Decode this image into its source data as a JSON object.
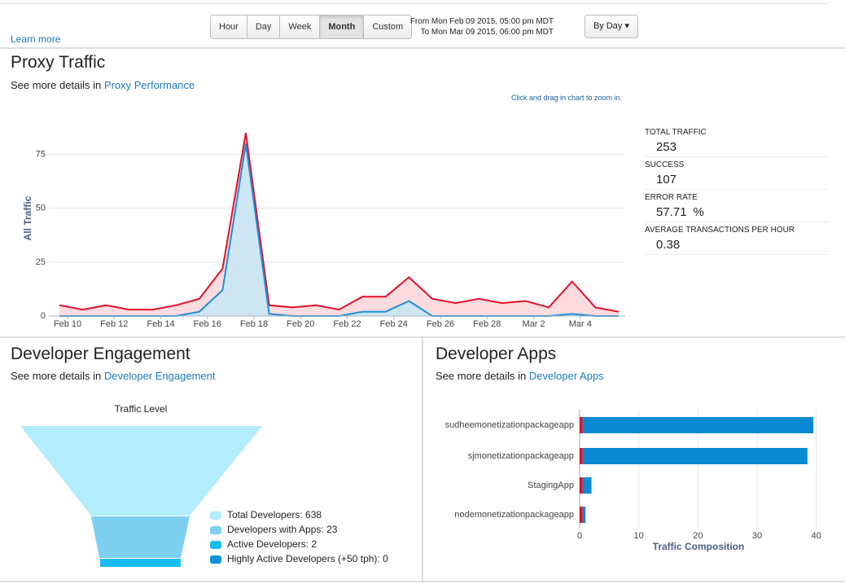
{
  "toolbar": {
    "learn_more": "Learn more",
    "range_buttons": [
      "Hour",
      "Day",
      "Week",
      "Month",
      "Custom"
    ],
    "active_button": 3,
    "from_text": "From Mon Feb 09 2015, 05:00 pm MDT",
    "to_text": "To Mon Mar 09 2015, 06:00 pm MDT",
    "interval": "By Day"
  },
  "proxy_traffic": {
    "title": "Proxy Traffic",
    "details_prefix": "See more details in",
    "details_link": "Proxy Performance",
    "hint": "Click and drag in chart to zoom in."
  },
  "stats": [
    {
      "label": "TOTAL TRAFFIC",
      "value": 253
    },
    {
      "label": "SUCCESS",
      "value": 107
    },
    {
      "label": "ERROR RATE",
      "value": 57.71,
      "unit": "%"
    },
    {
      "label": "AVERAGE TRANSACTIONS PER HOUR",
      "value": 0.38
    }
  ],
  "developer_engagement": {
    "title": "Developer Engagement",
    "details_prefix": "See more details in",
    "details_link": "Developer Engagement"
  },
  "developer_apps": {
    "title": "Developer Apps",
    "details_prefix": "See more details in",
    "details_link": "Developer Apps"
  },
  "chart_data": [
    {
      "type": "area",
      "y_label": "All Traffic",
      "categories": [
        null,
        "Feb 10",
        null,
        "Feb 12",
        null,
        "Feb 14",
        null,
        "Feb 16",
        null,
        "Feb 18",
        null,
        "Feb 20",
        null,
        "Feb 22",
        null,
        "Feb 24",
        null,
        "Feb 26",
        null,
        "Feb 28",
        null,
        "Mar 2",
        null,
        "Mar 4",
        null
      ],
      "series": [
        {
          "color": "#e3102a",
          "fill": "#fdd5d9",
          "values": [
            5,
            3,
            5,
            3,
            3,
            5,
            8,
            22,
            85,
            5,
            4,
            5,
            3,
            9,
            9,
            18,
            8,
            6,
            8,
            6,
            7,
            4,
            16,
            4,
            2
          ]
        },
        {
          "color": "#1c8fd6",
          "fill": "#c5e6f6",
          "values": [
            0,
            0,
            0,
            0,
            0,
            0,
            2,
            12,
            80,
            1,
            0,
            0,
            0,
            2,
            2,
            7,
            0,
            0,
            0,
            0,
            0,
            0,
            1,
            0,
            0
          ]
        }
      ],
      "ylim": [
        0,
        90
      ],
      "yticks": [
        0,
        25,
        50,
        75
      ],
      "grid": true
    },
    {
      "type": "funnel",
      "title": "Traffic Level",
      "legend_labels": [
        "Total Developers: 638",
        "Developers with Apps: 23",
        "Active Developers: 2",
        "Highly Active Developers (+50 tph): 0"
      ],
      "values": [
        638,
        23,
        2,
        0
      ],
      "colors": [
        "#b3ecfb",
        "#7dd0f0",
        "#19bcf4",
        "#0e8fd6"
      ]
    },
    {
      "type": "hbar",
      "stacked": true,
      "categories": [
        "sudheemonetizationpackageapp",
        "sjmonetizationpackageapp",
        "StagingApp",
        "nodemonetizationpackageapp"
      ],
      "series": [
        {
          "color": "#e3102a",
          "values": [
            0.5,
            0.5,
            0.5,
            0.5
          ]
        },
        {
          "color": "#0a8ad2",
          "values": [
            39,
            38,
            1.5,
            0.5
          ]
        }
      ],
      "xlim": [
        0,
        41
      ],
      "xticks": [
        0,
        10,
        20,
        30,
        40
      ],
      "x_label": "Traffic Composition",
      "grid": true
    }
  ]
}
